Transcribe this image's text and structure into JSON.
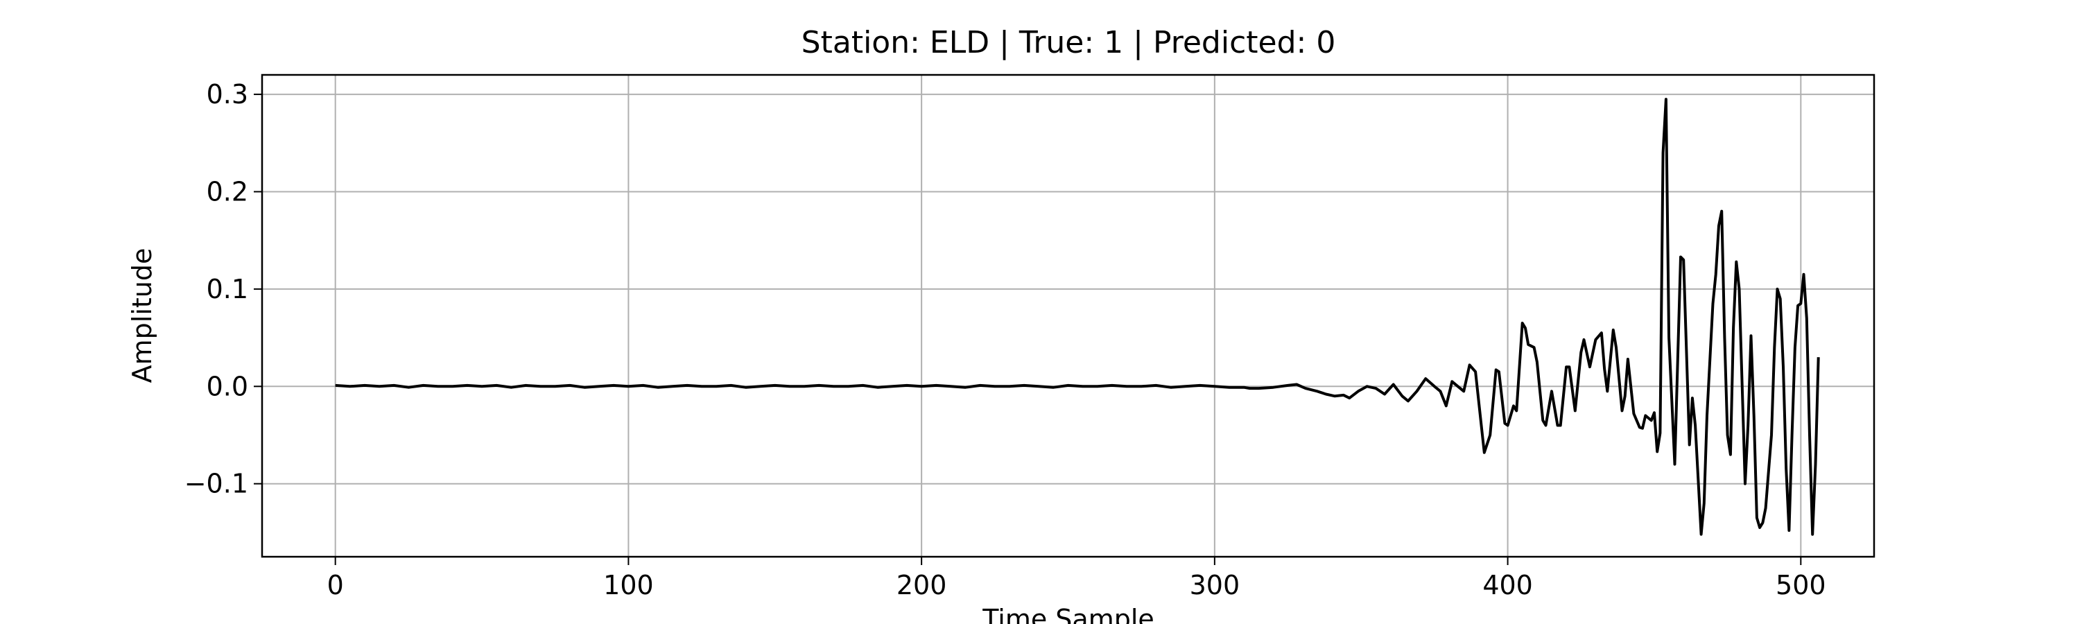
{
  "chart_data": {
    "type": "line",
    "title": "Station: ELD | True: 1 | Predicted: 0",
    "xlabel": "Time Sample",
    "ylabel": "Amplitude",
    "xlim": [
      -25,
      525
    ],
    "ylim": [
      -0.175,
      0.32
    ],
    "xticks": [
      0,
      100,
      200,
      300,
      400,
      500
    ],
    "xtick_labels": [
      "0",
      "100",
      "200",
      "300",
      "400",
      "500"
    ],
    "yticks": [
      -0.1,
      0.0,
      0.1,
      0.2,
      0.3
    ],
    "ytick_labels": [
      "−0.1",
      "0.0",
      "0.1",
      "0.2",
      "0.3"
    ],
    "grid": true,
    "legend": "none",
    "series": [
      {
        "color": "#000000",
        "points": [
          [
            0,
            0.001
          ],
          [
            5,
            0.0
          ],
          [
            10,
            0.001
          ],
          [
            15,
            0.0
          ],
          [
            20,
            0.001
          ],
          [
            25,
            -0.001
          ],
          [
            30,
            0.001
          ],
          [
            35,
            0.0
          ],
          [
            40,
            0.0
          ],
          [
            45,
            0.001
          ],
          [
            50,
            0.0
          ],
          [
            55,
            0.001
          ],
          [
            60,
            -0.001
          ],
          [
            65,
            0.001
          ],
          [
            70,
            0.0
          ],
          [
            75,
            0.0
          ],
          [
            80,
            0.001
          ],
          [
            85,
            -0.001
          ],
          [
            90,
            0.0
          ],
          [
            95,
            0.001
          ],
          [
            100,
            0.0
          ],
          [
            105,
            0.001
          ],
          [
            110,
            -0.001
          ],
          [
            115,
            0.0
          ],
          [
            120,
            0.001
          ],
          [
            125,
            0.0
          ],
          [
            130,
            0.0
          ],
          [
            135,
            0.001
          ],
          [
            140,
            -0.001
          ],
          [
            145,
            0.0
          ],
          [
            150,
            0.001
          ],
          [
            155,
            0.0
          ],
          [
            160,
            0.0
          ],
          [
            165,
            0.001
          ],
          [
            170,
            0.0
          ],
          [
            175,
            0.0
          ],
          [
            180,
            0.001
          ],
          [
            185,
            -0.001
          ],
          [
            190,
            0.0
          ],
          [
            195,
            0.001
          ],
          [
            200,
            0.0
          ],
          [
            205,
            0.001
          ],
          [
            210,
            0.0
          ],
          [
            215,
            -0.001
          ],
          [
            220,
            0.001
          ],
          [
            225,
            0.0
          ],
          [
            230,
            0.0
          ],
          [
            235,
            0.001
          ],
          [
            240,
            0.0
          ],
          [
            245,
            -0.001
          ],
          [
            250,
            0.001
          ],
          [
            255,
            0.0
          ],
          [
            260,
            0.0
          ],
          [
            265,
            0.001
          ],
          [
            270,
            0.0
          ],
          [
            275,
            0.0
          ],
          [
            280,
            0.001
          ],
          [
            285,
            -0.001
          ],
          [
            290,
            0.0
          ],
          [
            295,
            0.001
          ],
          [
            300,
            0.0
          ],
          [
            305,
            -0.001
          ],
          [
            310,
            -0.001
          ],
          [
            312,
            -0.002
          ],
          [
            315,
            -0.002
          ],
          [
            320,
            -0.001
          ],
          [
            325,
            0.001
          ],
          [
            328,
            0.002
          ],
          [
            331,
            -0.002
          ],
          [
            335,
            -0.005
          ],
          [
            338,
            -0.008
          ],
          [
            341,
            -0.01
          ],
          [
            344,
            -0.009
          ],
          [
            346,
            -0.012
          ],
          [
            349,
            -0.005
          ],
          [
            352,
            0.0
          ],
          [
            355,
            -0.002
          ],
          [
            358,
            -0.008
          ],
          [
            361,
            0.002
          ],
          [
            364,
            -0.01
          ],
          [
            366,
            -0.015
          ],
          [
            369,
            -0.005
          ],
          [
            372,
            0.008
          ],
          [
            375,
            0.0
          ],
          [
            377,
            -0.005
          ],
          [
            379,
            -0.02
          ],
          [
            381,
            0.005
          ],
          [
            383,
            0.0
          ],
          [
            385,
            -0.005
          ],
          [
            387,
            0.022
          ],
          [
            389,
            0.015
          ],
          [
            391,
            -0.04
          ],
          [
            392,
            -0.068
          ],
          [
            394,
            -0.05
          ],
          [
            396,
            0.017
          ],
          [
            397,
            0.015
          ],
          [
            399,
            -0.038
          ],
          [
            400,
            -0.04
          ],
          [
            402,
            -0.02
          ],
          [
            403,
            -0.025
          ],
          [
            405,
            0.065
          ],
          [
            406,
            0.06
          ],
          [
            407,
            0.043
          ],
          [
            409,
            0.04
          ],
          [
            410,
            0.025
          ],
          [
            412,
            -0.035
          ],
          [
            413,
            -0.04
          ],
          [
            415,
            -0.005
          ],
          [
            417,
            -0.04
          ],
          [
            418,
            -0.04
          ],
          [
            420,
            0.02
          ],
          [
            421,
            0.02
          ],
          [
            423,
            -0.025
          ],
          [
            425,
            0.035
          ],
          [
            426,
            0.048
          ],
          [
            428,
            0.02
          ],
          [
            430,
            0.048
          ],
          [
            432,
            0.055
          ],
          [
            433,
            0.018
          ],
          [
            434,
            -0.005
          ],
          [
            436,
            0.058
          ],
          [
            437,
            0.04
          ],
          [
            439,
            -0.025
          ],
          [
            440,
            -0.01
          ],
          [
            441,
            0.028
          ],
          [
            443,
            -0.028
          ],
          [
            445,
            -0.042
          ],
          [
            446,
            -0.043
          ],
          [
            447,
            -0.03
          ],
          [
            449,
            -0.035
          ],
          [
            450,
            -0.027
          ],
          [
            451,
            -0.067
          ],
          [
            452,
            -0.048
          ],
          [
            453,
            0.24
          ],
          [
            454,
            0.295
          ],
          [
            455,
            0.05
          ],
          [
            457,
            -0.08
          ],
          [
            459,
            0.133
          ],
          [
            460,
            0.13
          ],
          [
            462,
            -0.06
          ],
          [
            463,
            -0.012
          ],
          [
            464,
            -0.04
          ],
          [
            466,
            -0.152
          ],
          [
            467,
            -0.12
          ],
          [
            468,
            -0.03
          ],
          [
            470,
            0.085
          ],
          [
            471,
            0.115
          ],
          [
            472,
            0.165
          ],
          [
            473,
            0.18
          ],
          [
            474,
            0.05
          ],
          [
            475,
            -0.05
          ],
          [
            476,
            -0.07
          ],
          [
            477,
            0.06
          ],
          [
            478,
            0.128
          ],
          [
            479,
            0.1
          ],
          [
            481,
            -0.1
          ],
          [
            482,
            -0.04
          ],
          [
            483,
            0.052
          ],
          [
            484,
            -0.03
          ],
          [
            485,
            -0.135
          ],
          [
            486,
            -0.145
          ],
          [
            487,
            -0.14
          ],
          [
            488,
            -0.125
          ],
          [
            490,
            -0.05
          ],
          [
            491,
            0.04
          ],
          [
            492,
            0.1
          ],
          [
            493,
            0.09
          ],
          [
            494,
            0.02
          ],
          [
            495,
            -0.085
          ],
          [
            496,
            -0.148
          ],
          [
            497,
            -0.05
          ],
          [
            498,
            0.04
          ],
          [
            499,
            0.083
          ],
          [
            500,
            0.085
          ],
          [
            501,
            0.115
          ],
          [
            502,
            0.07
          ],
          [
            503,
            -0.05
          ],
          [
            504,
            -0.152
          ],
          [
            505,
            -0.08
          ],
          [
            506,
            0.03
          ]
        ]
      }
    ]
  }
}
